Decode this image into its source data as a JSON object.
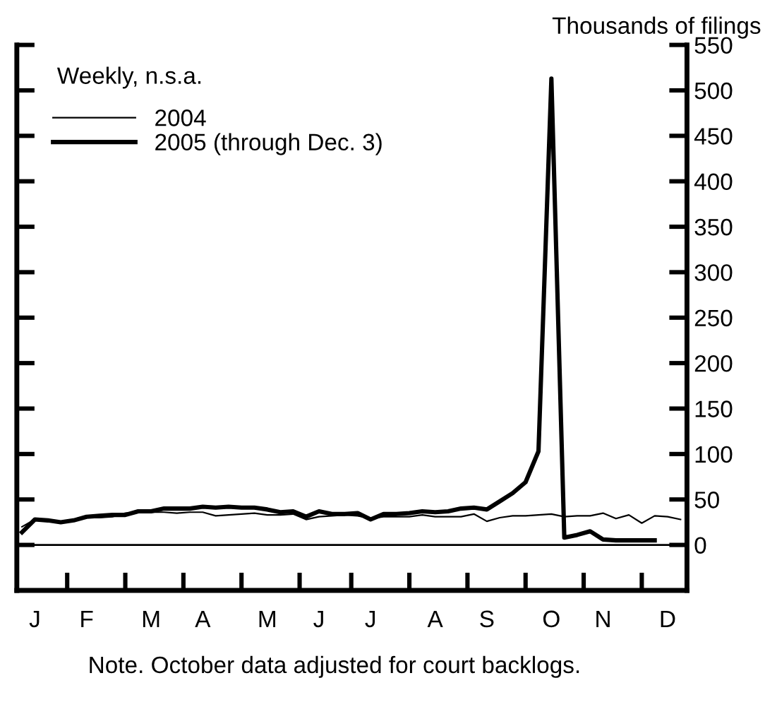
{
  "chart_data": {
    "type": "line",
    "ylabel": "Thousands of filings",
    "annotations": [
      "Weekly, n.s.a.",
      "Note. October data adjusted for court backlogs."
    ],
    "categories": [
      null,
      "J",
      null,
      null,
      null,
      "F",
      null,
      null,
      null,
      null,
      "M",
      null,
      null,
      null,
      "A",
      null,
      null,
      null,
      null,
      "M",
      null,
      null,
      null,
      "J",
      null,
      null,
      null,
      "J",
      null,
      null,
      null,
      null,
      "A",
      null,
      null,
      null,
      "S",
      null,
      null,
      null,
      null,
      "O",
      null,
      null,
      null,
      "N",
      null,
      null,
      null,
      null,
      "D",
      null
    ],
    "series": [
      {
        "name": "2004",
        "color": "#000000",
        "values": [
          20,
          28,
          26,
          25,
          27,
          30,
          30,
          31,
          35,
          36,
          36,
          36,
          35,
          36,
          36,
          32,
          33,
          34,
          35,
          33,
          33,
          34,
          28,
          31,
          32,
          33,
          32,
          29,
          31,
          31,
          31,
          33,
          31,
          31,
          31,
          34,
          26,
          30,
          32,
          32,
          33,
          34,
          31,
          32,
          32,
          35,
          29,
          33,
          24,
          32,
          31,
          28
        ]
      },
      {
        "name": "2005 (through Dec. 3)",
        "color": "#000000",
        "values": [
          14,
          28,
          27,
          25,
          27,
          31,
          32,
          33,
          33,
          37,
          37,
          40,
          40,
          40,
          42,
          41,
          42,
          41,
          41,
          39,
          36,
          37,
          31,
          37,
          34,
          34,
          35,
          28,
          34,
          34,
          35,
          37,
          36,
          37,
          40,
          41,
          39,
          48,
          57,
          69,
          103,
          513,
          8,
          11,
          15,
          6,
          5,
          5,
          5,
          5,
          null,
          null
        ]
      }
    ],
    "ylim": [
      -50,
      550
    ],
    "yticks": [
      0,
      50,
      100,
      150,
      200,
      250,
      300,
      350,
      400,
      450,
      500,
      550
    ],
    "ref_lines": [
      {
        "axis": "y",
        "value": 0,
        "color": "#000000"
      }
    ],
    "legend": "top left",
    "grid": false,
    "line_style": "solid",
    "marker": "none"
  }
}
